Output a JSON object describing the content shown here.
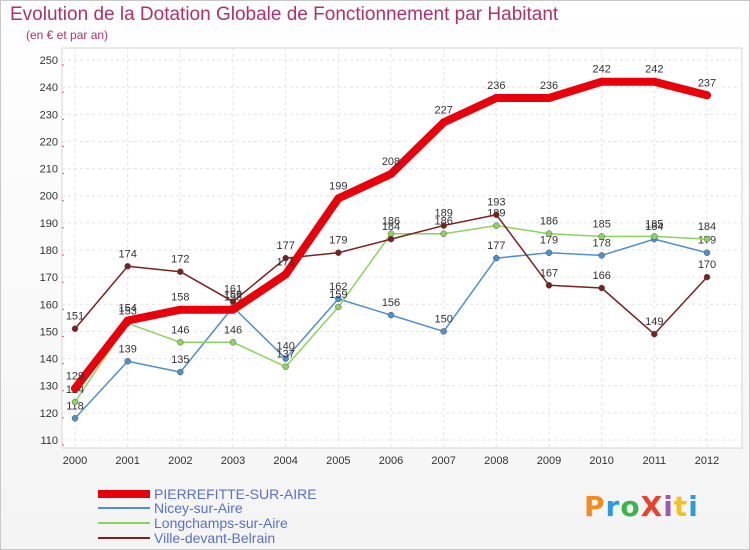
{
  "title": "Evolution de la Dotation Globale de Fonctionnement par Habitant",
  "subtitle": "(en € et par an)",
  "logo": {
    "text": "ProXiti",
    "colors": [
      "#f28c1e",
      "#2a9be0",
      "#39b54a",
      "#e8412c",
      "#9b59b6",
      "#f2c21e",
      "#2a9be0"
    ]
  },
  "chart_data": {
    "type": "line",
    "title": "Evolution de la Dotation Globale de Fonctionnement par Habitant",
    "ylabel": "(en € et par an)",
    "xlabel": "",
    "ylim": [
      110,
      250
    ],
    "ytick_step": 10,
    "grid": true,
    "legend_position": "bottom-left",
    "x": [
      "2000",
      "2001",
      "2002",
      "2003",
      "2004",
      "2005",
      "2006",
      "2007",
      "2008",
      "2009",
      "2010",
      "2011",
      "2012"
    ],
    "series": [
      {
        "name": "PIERREFITTE-SUR-AIRE",
        "color": "#e8000b",
        "highlight": true,
        "values": [
          129,
          154,
          158,
          158,
          171,
          199,
          208,
          227,
          236,
          236,
          242,
          242,
          237
        ],
        "labels": [
          "129",
          "154",
          "158",
          "158",
          "171",
          "199",
          "208",
          "227",
          "236",
          "236",
          "242",
          "242",
          "237"
        ]
      },
      {
        "name": "Nicey-sur-Aire",
        "color": "#4f8fce",
        "values": [
          118,
          139,
          135,
          159,
          140,
          162,
          156,
          150,
          177,
          179,
          178,
          184,
          179
        ],
        "labels": [
          "118",
          "139",
          "135",
          "159",
          "140",
          "162",
          "156",
          "150",
          "177",
          "179",
          "178",
          "184",
          "179"
        ]
      },
      {
        "name": "Longchamps-sur-Aire",
        "color": "#8dd35f",
        "values": [
          124,
          153,
          146,
          146,
          137,
          159,
          186,
          186,
          189,
          186,
          185,
          185,
          184
        ],
        "labels": [
          "124",
          "153",
          "146",
          "146",
          "137",
          "159",
          "186",
          "186",
          "189",
          "186",
          "185",
          "185",
          "184"
        ]
      },
      {
        "name": "Ville-devant-Belrain",
        "color": "#7b1f1f",
        "values": [
          151,
          174,
          172,
          161,
          177,
          179,
          184,
          189,
          193,
          167,
          166,
          149,
          170
        ],
        "labels": [
          "151",
          "174",
          "172",
          "161",
          "177",
          "179",
          "184",
          "189",
          "193",
          "167",
          "166",
          "149",
          "170"
        ]
      }
    ]
  }
}
